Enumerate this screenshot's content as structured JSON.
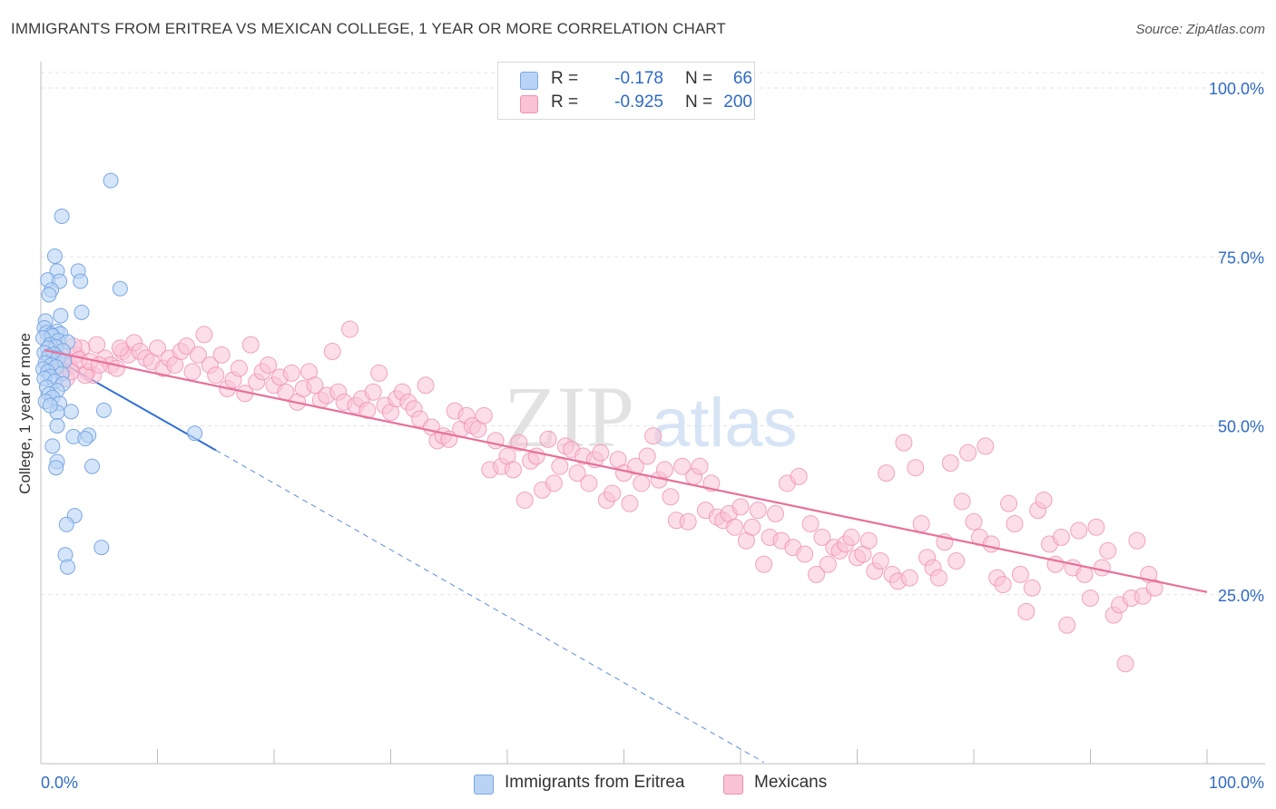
{
  "title": "IMMIGRANTS FROM ERITREA VS MEXICAN COLLEGE, 1 YEAR OR MORE CORRELATION CHART",
  "source": "Source: ZipAtlas.com",
  "watermark": {
    "zip": "ZIP",
    "atlas": "atlas"
  },
  "colors": {
    "eritrea_fill": "#b9d3f5",
    "eritrea_stroke": "#7aa7e3",
    "eritrea_line": "#2f6fd6",
    "mexican_fill": "#f9c3d5",
    "mexican_stroke": "#f08fb2",
    "mexican_line": "#e8709a",
    "tick_label": "#2f6bc4",
    "grid": "#e3e3e3"
  },
  "legend": {
    "r_label": "R =",
    "n_label": "N =",
    "eritrea": {
      "r": "-0.178",
      "n": "66"
    },
    "mexican": {
      "r": "-0.925",
      "n": "200"
    }
  },
  "chart_data": {
    "type": "scatter",
    "title": "IMMIGRANTS FROM ERITREA VS MEXICAN COLLEGE, 1 YEAR OR MORE CORRELATION CHART",
    "xlabel": "",
    "ylabel": "College, 1 year or more",
    "xlim": [
      0,
      100
    ],
    "ylim": [
      0,
      102
    ],
    "x_tick_labels": [
      "0.0%",
      "100.0%"
    ],
    "y_ticks": [
      25,
      50,
      75,
      100
    ],
    "y_tick_labels": [
      "25.0%",
      "50.0%",
      "75.0%",
      "100.0%"
    ],
    "grid": true,
    "legend_position": "top-center",
    "series": [
      {
        "name": "Immigrants from Eritrea",
        "r": -0.178,
        "n": 66,
        "trend": {
          "x": [
            0.2,
            15.0
          ],
          "y": [
            60.9,
            46.4
          ],
          "extended_to": [
            62.0,
            0.2
          ]
        },
        "points": [
          [
            6.0,
            86.3
          ],
          [
            1.8,
            81.0
          ],
          [
            1.2,
            75.1
          ],
          [
            3.2,
            72.9
          ],
          [
            1.4,
            72.9
          ],
          [
            0.6,
            71.6
          ],
          [
            3.4,
            71.4
          ],
          [
            1.6,
            71.4
          ],
          [
            6.8,
            70.3
          ],
          [
            0.9,
            70.1
          ],
          [
            0.7,
            69.4
          ],
          [
            3.5,
            66.8
          ],
          [
            1.7,
            66.3
          ],
          [
            0.4,
            65.5
          ],
          [
            0.3,
            64.5
          ],
          [
            1.4,
            64.0
          ],
          [
            0.5,
            63.8
          ],
          [
            1.7,
            63.6
          ],
          [
            0.9,
            63.5
          ],
          [
            1.0,
            63.3
          ],
          [
            0.2,
            63.0
          ],
          [
            1.5,
            62.6
          ],
          [
            2.3,
            62.4
          ],
          [
            0.8,
            62.0
          ],
          [
            1.3,
            61.7
          ],
          [
            0.6,
            61.5
          ],
          [
            1.9,
            61.1
          ],
          [
            0.3,
            60.8
          ],
          [
            1.1,
            60.6
          ],
          [
            0.7,
            60.3
          ],
          [
            1.5,
            60.0
          ],
          [
            2.0,
            59.6
          ],
          [
            0.4,
            59.3
          ],
          [
            0.9,
            59.0
          ],
          [
            1.3,
            58.7
          ],
          [
            0.2,
            58.4
          ],
          [
            0.6,
            58.0
          ],
          [
            1.8,
            57.7
          ],
          [
            0.8,
            57.3
          ],
          [
            0.3,
            57.0
          ],
          [
            1.2,
            56.6
          ],
          [
            1.9,
            56.2
          ],
          [
            0.5,
            55.7
          ],
          [
            1.4,
            55.2
          ],
          [
            0.7,
            54.7
          ],
          [
            1.0,
            54.2
          ],
          [
            0.4,
            53.6
          ],
          [
            1.6,
            53.3
          ],
          [
            2.6,
            52.1
          ],
          [
            5.4,
            52.3
          ],
          [
            1.4,
            52.0
          ],
          [
            1.4,
            50.0
          ],
          [
            13.2,
            48.9
          ],
          [
            4.1,
            48.6
          ],
          [
            2.8,
            48.4
          ],
          [
            3.8,
            48.1
          ],
          [
            1.4,
            44.7
          ],
          [
            1.3,
            43.8
          ],
          [
            4.4,
            44.0
          ],
          [
            2.9,
            36.7
          ],
          [
            2.2,
            35.4
          ],
          [
            5.2,
            32.0
          ],
          [
            2.1,
            30.9
          ],
          [
            2.3,
            29.1
          ],
          [
            1.0,
            47.0
          ],
          [
            0.8,
            53.0
          ]
        ]
      },
      {
        "name": "Mexicans",
        "r": -0.925,
        "n": 200,
        "trend": {
          "x": [
            0.3,
            100.0
          ],
          "y": [
            61.2,
            25.4
          ]
        },
        "points": [
          [
            1.0,
            61.0
          ],
          [
            1.5,
            60.2
          ],
          [
            2.0,
            59.5
          ],
          [
            2.5,
            58.8
          ],
          [
            3.0,
            60.5
          ],
          [
            3.5,
            61.5
          ],
          [
            4.0,
            58.0
          ],
          [
            4.5,
            57.5
          ],
          [
            1.2,
            59.0
          ],
          [
            1.8,
            58.2
          ],
          [
            2.2,
            57.0
          ],
          [
            2.8,
            61.8
          ],
          [
            3.3,
            59.8
          ],
          [
            4.8,
            62.0
          ],
          [
            5.5,
            60.0
          ],
          [
            6.0,
            59.0
          ],
          [
            6.5,
            58.5
          ],
          [
            7.0,
            61.0
          ],
          [
            7.5,
            60.5
          ],
          [
            8.0,
            62.3
          ],
          [
            8.5,
            61.0
          ],
          [
            9.0,
            60.0
          ],
          [
            9.5,
            59.5
          ],
          [
            10.0,
            61.5
          ],
          [
            10.5,
            58.5
          ],
          [
            11.0,
            60.0
          ],
          [
            11.5,
            59.0
          ],
          [
            12.0,
            61.0
          ],
          [
            12.5,
            61.8
          ],
          [
            13.0,
            58.0
          ],
          [
            13.5,
            60.5
          ],
          [
            14.0,
            63.5
          ],
          [
            14.5,
            59.0
          ],
          [
            15.0,
            57.5
          ],
          [
            15.5,
            60.5
          ],
          [
            16.0,
            55.5
          ],
          [
            16.5,
            56.8
          ],
          [
            17.0,
            58.5
          ],
          [
            17.5,
            54.8
          ],
          [
            18.0,
            62.0
          ],
          [
            18.5,
            56.5
          ],
          [
            19.0,
            58.0
          ],
          [
            19.5,
            59.0
          ],
          [
            20.0,
            56.0
          ],
          [
            20.5,
            57.2
          ],
          [
            21.0,
            55.0
          ],
          [
            21.5,
            57.8
          ],
          [
            22.0,
            53.5
          ],
          [
            22.5,
            55.5
          ],
          [
            23.0,
            58.0
          ],
          [
            23.5,
            56.0
          ],
          [
            24.0,
            53.8
          ],
          [
            24.5,
            54.5
          ],
          [
            25.0,
            61.0
          ],
          [
            25.5,
            55.0
          ],
          [
            26.0,
            53.5
          ],
          [
            26.5,
            64.3
          ],
          [
            27.0,
            53.0
          ],
          [
            27.5,
            54.0
          ],
          [
            28.0,
            52.3
          ],
          [
            28.5,
            55.0
          ],
          [
            29.0,
            57.8
          ],
          [
            29.5,
            53.0
          ],
          [
            30.0,
            52.0
          ],
          [
            30.5,
            54.0
          ],
          [
            31.0,
            55.0
          ],
          [
            31.5,
            53.5
          ],
          [
            32.0,
            52.5
          ],
          [
            32.5,
            51.0
          ],
          [
            33.0,
            56.0
          ],
          [
            33.5,
            49.8
          ],
          [
            34.0,
            47.8
          ],
          [
            34.5,
            48.5
          ],
          [
            35.0,
            48.0
          ],
          [
            35.5,
            52.2
          ],
          [
            36.0,
            49.5
          ],
          [
            36.5,
            51.5
          ],
          [
            37.0,
            50.0
          ],
          [
            37.5,
            49.5
          ],
          [
            38.0,
            51.5
          ],
          [
            38.5,
            43.5
          ],
          [
            39.0,
            47.8
          ],
          [
            39.5,
            44.0
          ],
          [
            40.0,
            45.5
          ],
          [
            40.5,
            43.5
          ],
          [
            41.0,
            47.5
          ],
          [
            41.5,
            39.0
          ],
          [
            42.0,
            44.8
          ],
          [
            42.5,
            45.5
          ],
          [
            43.0,
            40.5
          ],
          [
            43.5,
            48.0
          ],
          [
            44.0,
            41.5
          ],
          [
            44.5,
            44.0
          ],
          [
            45.0,
            47.0
          ],
          [
            45.5,
            46.5
          ],
          [
            46.0,
            43.0
          ],
          [
            46.5,
            45.5
          ],
          [
            47.0,
            41.5
          ],
          [
            47.5,
            45.0
          ],
          [
            48.0,
            46.0
          ],
          [
            48.5,
            39.0
          ],
          [
            49.0,
            40.0
          ],
          [
            49.5,
            45.0
          ],
          [
            50.0,
            43.0
          ],
          [
            50.5,
            38.5
          ],
          [
            51.0,
            44.0
          ],
          [
            51.5,
            41.5
          ],
          [
            52.0,
            45.5
          ],
          [
            52.5,
            48.5
          ],
          [
            53.0,
            42.0
          ],
          [
            53.5,
            43.5
          ],
          [
            54.0,
            39.5
          ],
          [
            54.5,
            36.0
          ],
          [
            55.0,
            44.0
          ],
          [
            55.5,
            35.8
          ],
          [
            56.0,
            42.5
          ],
          [
            56.5,
            44.0
          ],
          [
            57.0,
            37.5
          ],
          [
            57.5,
            41.5
          ],
          [
            58.0,
            36.5
          ],
          [
            58.5,
            36.0
          ],
          [
            59.0,
            37.0
          ],
          [
            59.5,
            35.0
          ],
          [
            60.0,
            38.0
          ],
          [
            60.5,
            33.0
          ],
          [
            61.0,
            35.0
          ],
          [
            61.5,
            37.5
          ],
          [
            62.0,
            29.5
          ],
          [
            62.5,
            33.5
          ],
          [
            63.0,
            37.0
          ],
          [
            63.5,
            33.0
          ],
          [
            64.0,
            41.5
          ],
          [
            64.5,
            32.0
          ],
          [
            65.0,
            42.5
          ],
          [
            65.5,
            31.0
          ],
          [
            66.0,
            35.5
          ],
          [
            66.5,
            28.0
          ],
          [
            67.0,
            33.5
          ],
          [
            67.5,
            29.5
          ],
          [
            68.0,
            32.0
          ],
          [
            68.5,
            31.5
          ],
          [
            69.0,
            32.5
          ],
          [
            69.5,
            33.5
          ],
          [
            70.0,
            30.5
          ],
          [
            70.5,
            31.0
          ],
          [
            71.0,
            33.0
          ],
          [
            71.5,
            28.5
          ],
          [
            72.0,
            30.0
          ],
          [
            72.5,
            43.0
          ],
          [
            73.0,
            28.0
          ],
          [
            73.5,
            27.0
          ],
          [
            74.0,
            47.5
          ],
          [
            74.5,
            27.5
          ],
          [
            75.0,
            43.8
          ],
          [
            75.5,
            35.5
          ],
          [
            76.0,
            30.5
          ],
          [
            76.5,
            29.0
          ],
          [
            77.0,
            27.5
          ],
          [
            77.5,
            32.8
          ],
          [
            78.0,
            44.5
          ],
          [
            78.5,
            30.0
          ],
          [
            79.0,
            38.8
          ],
          [
            79.5,
            46.0
          ],
          [
            80.0,
            35.8
          ],
          [
            80.5,
            33.5
          ],
          [
            81.0,
            47.0
          ],
          [
            81.5,
            32.5
          ],
          [
            82.0,
            27.5
          ],
          [
            82.5,
            26.5
          ],
          [
            83.0,
            38.5
          ],
          [
            83.5,
            35.5
          ],
          [
            84.0,
            28.0
          ],
          [
            84.5,
            22.5
          ],
          [
            85.0,
            26.0
          ],
          [
            85.5,
            37.5
          ],
          [
            86.0,
            39.0
          ],
          [
            86.5,
            32.5
          ],
          [
            87.0,
            29.5
          ],
          [
            87.5,
            33.5
          ],
          [
            88.0,
            20.5
          ],
          [
            88.5,
            29.0
          ],
          [
            89.0,
            34.5
          ],
          [
            89.5,
            28.0
          ],
          [
            90.0,
            24.5
          ],
          [
            90.5,
            35.0
          ],
          [
            91.0,
            29.0
          ],
          [
            91.5,
            31.5
          ],
          [
            92.0,
            22.0
          ],
          [
            92.5,
            23.5
          ],
          [
            93.0,
            14.8
          ],
          [
            93.5,
            24.5
          ],
          [
            94.0,
            33.0
          ],
          [
            94.5,
            24.8
          ],
          [
            95.0,
            28.0
          ],
          [
            95.5,
            26.0
          ],
          [
            3.8,
            57.5
          ],
          [
            4.2,
            59.5
          ],
          [
            2.6,
            58.0
          ],
          [
            5.0,
            59.0
          ],
          [
            6.8,
            61.5
          ]
        ]
      }
    ]
  },
  "y_axis_label": "College, 1 year or more",
  "bottom_legend": {
    "eritrea": "Immigrants from Eritrea",
    "mexican": "Mexicans"
  }
}
